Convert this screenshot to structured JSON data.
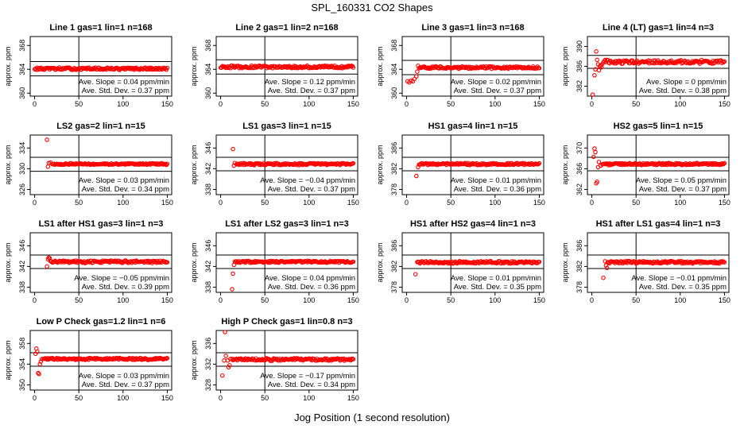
{
  "figure": {
    "title": "SPL_160331  CO2 Shapes",
    "xlabel": "Jog Position (1 second resolution)"
  },
  "chart_data": [
    {
      "type": "scatter",
      "title": "Line 1 gas=1 lin=1 n=168",
      "ylabel": "approx. ppm",
      "xlim": [
        -5,
        155
      ],
      "ylim": [
        359.5,
        369.5
      ],
      "xticks": [
        0,
        50,
        100,
        150
      ],
      "yticks": [
        360,
        364,
        368
      ],
      "hlines": [
        362.9,
        365.3
      ],
      "vline": 50,
      "slope": "Ave. Slope = 0.04  ppm/min",
      "stddev": "Ave. Std. Dev. = 0.37 ppm",
      "baseline": 364.1,
      "noise": 0.25,
      "start": 0,
      "pre": []
    },
    {
      "type": "scatter",
      "title": "Line 2 gas=1 lin=2 n=168",
      "ylabel": "approx. ppm",
      "xlim": [
        -5,
        155
      ],
      "ylim": [
        359.5,
        369.5
      ],
      "xticks": [
        0,
        50,
        100,
        150
      ],
      "yticks": [
        360,
        364,
        368
      ],
      "hlines": [
        363.2,
        365.6
      ],
      "vline": 50,
      "slope": "Ave. Slope = 0.12  ppm/min",
      "stddev": "Ave. Std. Dev. = 0.37 ppm",
      "baseline": 364.4,
      "noise": 0.3,
      "start": 0,
      "pre": []
    },
    {
      "type": "scatter",
      "title": "Line 3 gas=1 lin=3 n=168",
      "ylabel": "approx. ppm",
      "xlim": [
        -5,
        155
      ],
      "ylim": [
        359.5,
        369.5
      ],
      "xticks": [
        0,
        50,
        100,
        150
      ],
      "yticks": [
        360,
        364,
        368
      ],
      "hlines": [
        363.1,
        365.5
      ],
      "vline": 50,
      "slope": "Ave. Slope = 0.02  ppm/min",
      "stddev": "Ave. Std. Dev. = 0.37 ppm",
      "baseline": 364.3,
      "noise": 0.25,
      "start": 14,
      "pre": [
        [
          1,
          362.0
        ],
        [
          3,
          361.8
        ],
        [
          5,
          362.1
        ],
        [
          7,
          362.0
        ],
        [
          9,
          362.4
        ],
        [
          11,
          362.8
        ],
        [
          12,
          363.6
        ],
        [
          13,
          364.6
        ]
      ]
    },
    {
      "type": "scatter",
      "title": "Line 4 (LT) gas=1 lin=4 n=3",
      "ylabel": "approx. ppm",
      "xlim": [
        -5,
        155
      ],
      "ylim": [
        380,
        392
      ],
      "xticks": [
        0,
        50,
        100,
        150
      ],
      "yticks": [
        382,
        386,
        390
      ],
      "hlines": [
        385.6,
        388.2
      ],
      "vline": 50,
      "slope": "Ave. Slope = 0  ppm/min",
      "stddev": "Ave. Std. Dev. = 0.38 ppm",
      "baseline": 386.9,
      "noise": 0.45,
      "start": 16,
      "pre": [
        [
          1,
          380.3
        ],
        [
          3,
          384.2
        ],
        [
          4,
          385.4
        ],
        [
          5,
          389.0
        ],
        [
          6,
          387.3
        ],
        [
          7,
          386.4
        ],
        [
          8,
          385.2
        ],
        [
          9,
          386.0
        ],
        [
          10,
          386.2
        ],
        [
          11,
          385.8
        ],
        [
          12,
          386.5
        ],
        [
          13,
          386.8
        ],
        [
          14,
          387.0
        ],
        [
          15,
          387.3
        ]
      ]
    },
    {
      "type": "scatter",
      "title": "LS2 gas=2 lin=1 n=15",
      "ylabel": "approx. ppm",
      "xlim": [
        -5,
        155
      ],
      "ylim": [
        325,
        336.5
      ],
      "xticks": [
        0,
        50,
        100,
        150
      ],
      "yticks": [
        326,
        330,
        334
      ],
      "hlines": [
        329.5,
        332.2
      ],
      "vline": 50,
      "slope": "Ave. Slope = 0.03  ppm/min",
      "stddev": "Ave. Std. Dev. = 0.34 ppm",
      "baseline": 330.9,
      "noise": 0.2,
      "start": 20,
      "pre": [
        [
          14,
          335.6
        ],
        [
          15,
          330.4
        ],
        [
          16,
          331.1
        ],
        [
          18,
          331.2
        ]
      ]
    },
    {
      "type": "scatter",
      "title": "LS1 gas=3 lin=1 n=15",
      "ylabel": "approx. ppm",
      "xlim": [
        -5,
        155
      ],
      "ylim": [
        337,
        348.5
      ],
      "xticks": [
        0,
        50,
        100,
        150
      ],
      "yticks": [
        338,
        342,
        346
      ],
      "hlines": [
        341.6,
        344.2
      ],
      "vline": 50,
      "slope": "Ave. Slope = −0.04  ppm/min",
      "stddev": "Ave. Std. Dev. = 0.37 ppm",
      "baseline": 342.9,
      "noise": 0.25,
      "start": 18,
      "pre": [
        [
          14,
          345.8
        ],
        [
          15,
          342.6
        ],
        [
          16,
          343.1
        ]
      ]
    },
    {
      "type": "scatter",
      "title": "HS1 gas=4 lin=1 n=15",
      "ylabel": "approx. ppm",
      "xlim": [
        -5,
        155
      ],
      "ylim": [
        377,
        388.5
      ],
      "xticks": [
        0,
        50,
        100,
        150
      ],
      "yticks": [
        378,
        382,
        386
      ],
      "hlines": [
        381.6,
        384.2
      ],
      "vline": 50,
      "slope": "Ave. Slope = 0.01  ppm/min",
      "stddev": "Ave. Std. Dev. = 0.36 ppm",
      "baseline": 382.9,
      "noise": 0.25,
      "start": 15,
      "pre": [
        [
          11,
          380.6
        ],
        [
          13,
          382.3
        ],
        [
          14,
          382.8
        ]
      ]
    },
    {
      "type": "scatter",
      "title": "HS2 gas=5 lin=1 n=15",
      "ylabel": "approx. ppm",
      "xlim": [
        -5,
        155
      ],
      "ylim": [
        361,
        372.5
      ],
      "xticks": [
        0,
        50,
        100,
        150
      ],
      "yticks": [
        362,
        366,
        370
      ],
      "hlines": [
        365.6,
        368.2
      ],
      "vline": 50,
      "slope": "Ave. Slope = 0.05  ppm/min",
      "stddev": "Ave. Std. Dev. = 0.37 ppm",
      "baseline": 366.9,
      "noise": 0.25,
      "start": 12,
      "pre": [
        [
          2,
          368.3
        ],
        [
          3,
          369.9
        ],
        [
          4,
          369.2
        ],
        [
          5,
          363.2
        ],
        [
          6,
          363.5
        ],
        [
          7,
          366.3
        ],
        [
          8,
          367.3
        ],
        [
          10,
          366.6
        ]
      ]
    },
    {
      "type": "scatter",
      "title": "LS1 after HS1 gas=3 lin=1 n=3",
      "ylabel": "approx. ppm",
      "xlim": [
        -5,
        155
      ],
      "ylim": [
        337,
        348.5
      ],
      "xticks": [
        0,
        50,
        100,
        150
      ],
      "yticks": [
        338,
        342,
        346
      ],
      "hlines": [
        341.6,
        344.2
      ],
      "vline": 50,
      "slope": "Ave. Slope = −0.05  ppm/min",
      "stddev": "Ave. Std. Dev. = 0.39 ppm",
      "baseline": 342.9,
      "noise": 0.3,
      "start": 19,
      "pre": [
        [
          14,
          342.0
        ],
        [
          15,
          343.4
        ],
        [
          16,
          343.7
        ],
        [
          17,
          343.6
        ],
        [
          18,
          343.0
        ]
      ]
    },
    {
      "type": "scatter",
      "title": "LS1 after LS2 gas=3 lin=1 n=3",
      "ylabel": "approx. ppm",
      "xlim": [
        -5,
        155
      ],
      "ylim": [
        337,
        348.5
      ],
      "xticks": [
        0,
        50,
        100,
        150
      ],
      "yticks": [
        338,
        342,
        346
      ],
      "hlines": [
        341.6,
        344.2
      ],
      "vline": 50,
      "slope": "Ave. Slope = 0.04  ppm/min",
      "stddev": "Ave. Std. Dev. = 0.36 ppm",
      "baseline": 342.9,
      "noise": 0.25,
      "start": 16,
      "pre": [
        [
          13,
          337.6
        ],
        [
          14,
          340.6
        ],
        [
          15,
          342.3
        ]
      ]
    },
    {
      "type": "scatter",
      "title": "HS1 after HS2 gas=4 lin=1 n=3",
      "ylabel": "approx. ppm",
      "xlim": [
        -5,
        155
      ],
      "ylim": [
        377,
        388.5
      ],
      "xticks": [
        0,
        50,
        100,
        150
      ],
      "yticks": [
        378,
        382,
        386
      ],
      "hlines": [
        381.6,
        384.2
      ],
      "vline": 50,
      "slope": "Ave. Slope = 0.01  ppm/min",
      "stddev": "Ave. Std. Dev. = 0.35 ppm",
      "baseline": 382.8,
      "noise": 0.3,
      "start": 12,
      "pre": [
        [
          10,
          380.5
        ]
      ]
    },
    {
      "type": "scatter",
      "title": "HS1 after LS1 gas=4 lin=1 n=3",
      "ylabel": "approx. ppm",
      "xlim": [
        -5,
        155
      ],
      "ylim": [
        377,
        388.5
      ],
      "xticks": [
        0,
        50,
        100,
        150
      ],
      "yticks": [
        378,
        382,
        386
      ],
      "hlines": [
        381.6,
        384.2
      ],
      "vline": 50,
      "slope": "Ave. Slope = −0.01  ppm/min",
      "stddev": "Ave. Std. Dev. = 0.35 ppm",
      "baseline": 382.8,
      "noise": 0.3,
      "start": 18,
      "pre": [
        [
          13,
          379.8
        ],
        [
          15,
          383.0
        ],
        [
          16,
          382.2
        ],
        [
          17,
          381.7
        ]
      ]
    },
    {
      "type": "scatter",
      "title": "Low P Check gas=1.2 lin=1 n=6",
      "ylabel": "approx. ppm",
      "xlim": [
        -5,
        155
      ],
      "ylim": [
        349,
        360.5
      ],
      "xticks": [
        0,
        50,
        100,
        150
      ],
      "yticks": [
        350,
        354,
        358
      ],
      "hlines": [
        353.6,
        356.2
      ],
      "vline": 50,
      "slope": "Ave. Slope = 0.03  ppm/min",
      "stddev": "Ave. Std. Dev. = 0.37 ppm",
      "baseline": 355.0,
      "noise": 0.25,
      "start": 10,
      "pre": [
        [
          1,
          356.0
        ],
        [
          2,
          357.0
        ],
        [
          3,
          356.4
        ],
        [
          4,
          352.3
        ],
        [
          5,
          352.1
        ],
        [
          6,
          354.0
        ],
        [
          7,
          354.5
        ],
        [
          8,
          355.0
        ]
      ]
    },
    {
      "type": "scatter",
      "title": "High P Check gas=1 lin=0.8 n=3",
      "ylabel": "approx. ppm",
      "xlim": [
        -5,
        155
      ],
      "ylim": [
        327,
        338.5
      ],
      "xticks": [
        0,
        50,
        100,
        150
      ],
      "yticks": [
        328,
        332,
        336
      ],
      "hlines": [
        331.6,
        334.2
      ],
      "vline": 50,
      "slope": "Ave. Slope = −0.17  ppm/min",
      "stddev": "Ave. Std. Dev. = 0.34 ppm",
      "baseline": 332.9,
      "noise": 0.3,
      "start": 13,
      "pre": [
        [
          2,
          329.8
        ],
        [
          4,
          332.7
        ],
        [
          5,
          338.2
        ],
        [
          6,
          333.6
        ],
        [
          8,
          332.7
        ],
        [
          9,
          331.4
        ],
        [
          10,
          331.8
        ],
        [
          11,
          333.0
        ]
      ]
    }
  ]
}
